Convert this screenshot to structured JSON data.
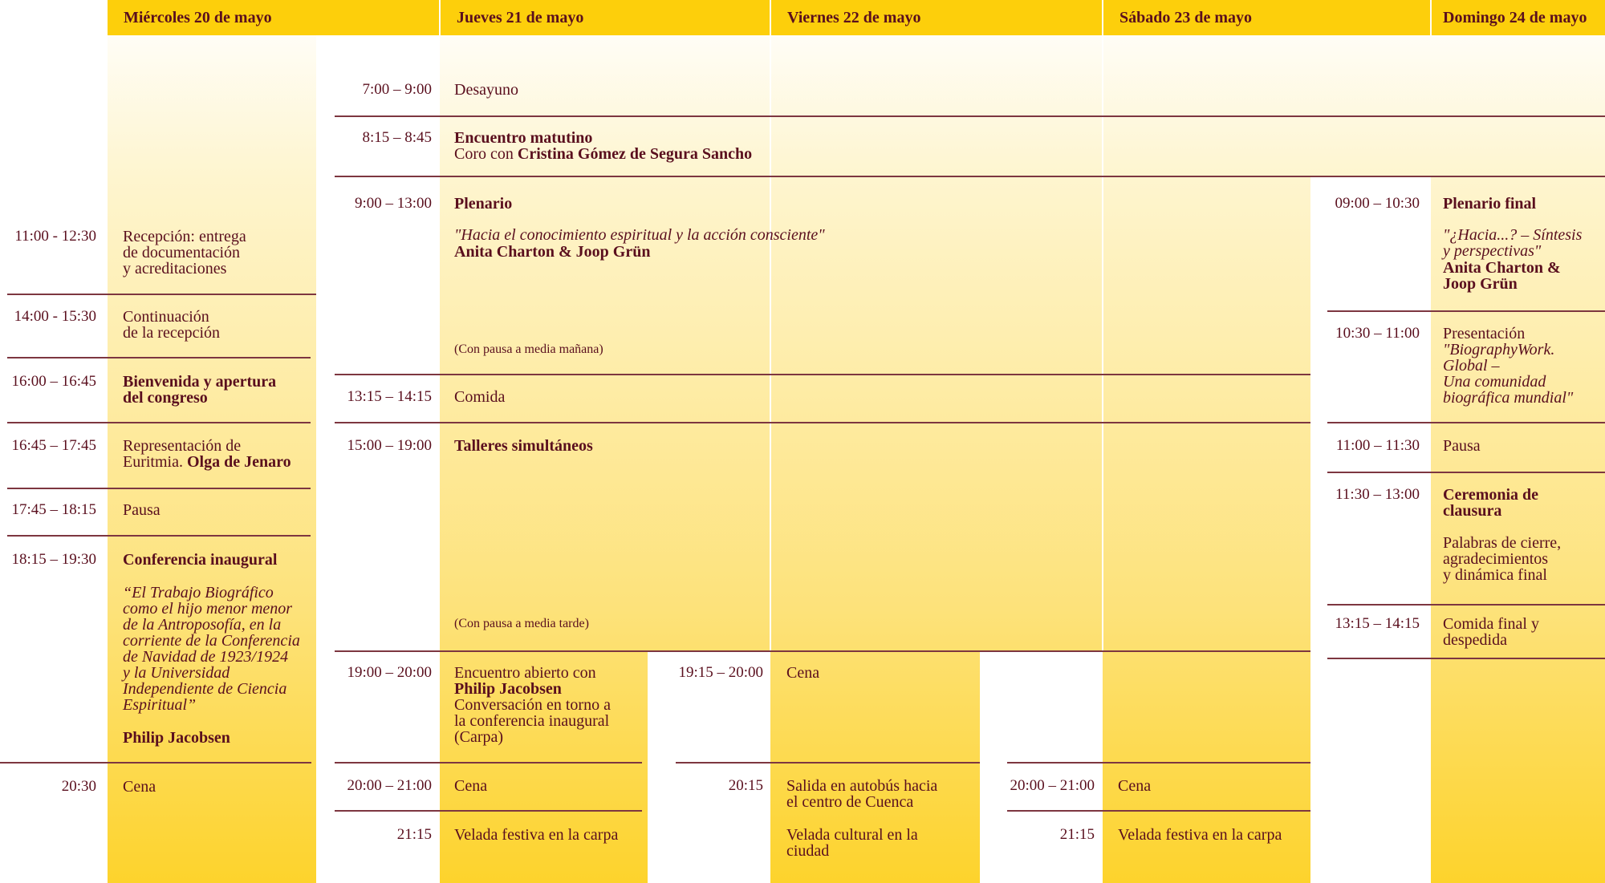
{
  "colors": {
    "header": "#fdcf0b",
    "text": "#5a0f1e",
    "rule": "#7d3640"
  },
  "days": [
    "Miércoles 20 de mayo",
    "Jueves 21 de mayo",
    "Viernes 22 de mayo",
    "Sábado 23 de mayo",
    "Domingo 24 de mayo"
  ],
  "wed": {
    "s1": {
      "time": "11:00 - 12:30",
      "text": "Recepción: entrega\nde documentación\ny acreditaciones"
    },
    "s2": {
      "time": "14:00 - 15:30",
      "text": "Continuación\nde la recepción"
    },
    "s3": {
      "time": "16:00 – 16:45",
      "title": "Bienvenida y apertura\ndel congreso"
    },
    "s4": {
      "time": "16:45 – 17:45",
      "text": "Representación de\nEuritmia. ",
      "speaker": "Olga de Jenaro"
    },
    "s5": {
      "time": "17:45 – 18:15",
      "text": "Pausa"
    },
    "s6": {
      "time": "18:15 – 19:30",
      "title": "Conferencia inaugural",
      "quote": "“El Trabajo Biográfico\ncomo el hijo menor menor\nde la Antroposofía, en la\ncorriente de la Conferencia\nde Navidad de 1923/1924\ny la Universidad\nIndependiente de Ciencia\nEspiritual”",
      "speaker": "Philip Jacobsen"
    },
    "s7": {
      "time": "20:30",
      "text": "Cena"
    }
  },
  "thu": {
    "s1": {
      "time": "7:00 – 9:00",
      "text": "Desayuno"
    },
    "s2": {
      "time": "8:15 – 8:45",
      "title": "Encuentro matutino",
      "text": "Coro con ",
      "speaker": "Cristina Gómez de Segura Sancho"
    },
    "s3": {
      "time": "9:00 – 13:00",
      "title": "Plenario",
      "quote": "\"Hacia el conocimiento espiritual y la acción consciente\"",
      "speaker": "Anita Charton & Joop Grün",
      "note": "(Con pausa a media mañana)"
    },
    "s4": {
      "time": "13:15 – 14:15",
      "text": "Comida"
    },
    "s5": {
      "time": "15:00 – 19:00",
      "title": "Talleres simultáneos",
      "note": "(Con pausa a media tarde)"
    },
    "s6": {
      "time": "19:00 – 20:00",
      "text": "Encuentro abierto con",
      "speaker": "Philip Jacobsen",
      "text2": "Conversación en torno a\nla conferencia inaugural\n(Carpa)"
    },
    "s7": {
      "time": "20:00 – 21:00",
      "text": "Cena"
    },
    "s8": {
      "time": "21:15",
      "text": "Velada festiva en la carpa"
    }
  },
  "fri": {
    "s1": {
      "time": "19:15 – 20:00",
      "text": "Cena"
    },
    "s2": {
      "time": "20:15",
      "text": "Salida en autobús hacia\nel centro de Cuenca"
    },
    "s3": {
      "text": "Velada cultural en la\nciudad"
    }
  },
  "sat": {
    "s1": {
      "time": "20:00 – 21:00",
      "text": "Cena"
    },
    "s2": {
      "time": "21:15",
      "text": "Velada festiva en la carpa"
    }
  },
  "sun": {
    "s1": {
      "time": "09:00 – 10:30",
      "title": "Plenario final",
      "quote": "\"¿Hacia...? – Síntesis\ny perspectivas\"",
      "speaker": "Anita Charton &\nJoop Grün"
    },
    "s2": {
      "time": "10:30 – 11:00",
      "text": "Presentación",
      "quote": "\"BiographyWork.\nGlobal –\nUna comunidad\nbiográfica mundial\""
    },
    "s3": {
      "time": "11:00 – 11:30",
      "text": "Pausa"
    },
    "s4": {
      "time": "11:30 – 13:00",
      "title": "Ceremonia de\nclausura",
      "text": "Palabras de cierre,\nagradecimientos\ny dinámica final"
    },
    "s5": {
      "time": "13:15 – 14:15",
      "text": "Comida final y\ndespedida"
    }
  }
}
